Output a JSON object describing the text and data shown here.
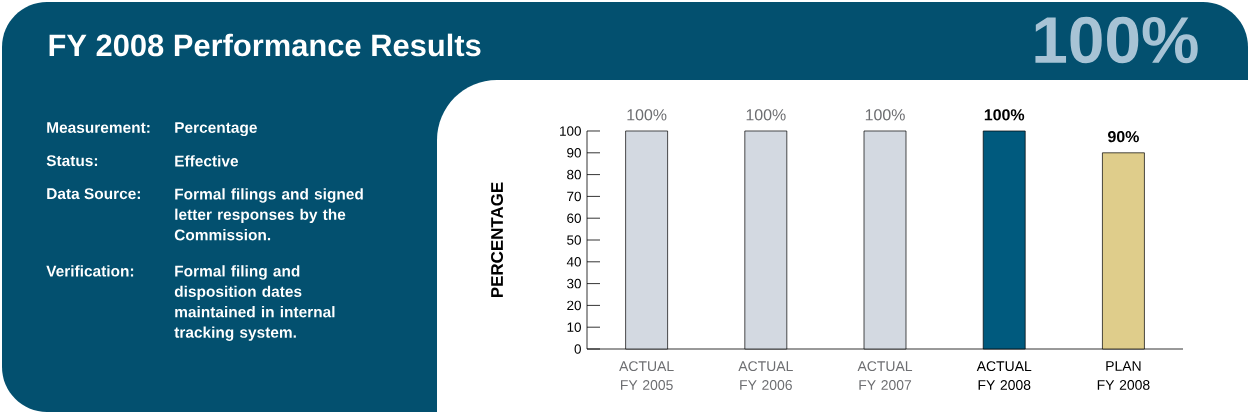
{
  "chart_data": {
    "type": "bar",
    "title": "FY 2008 Performance Results",
    "ylabel": "PERCENTAGE",
    "categories": [
      "ACTUAL FY 2005",
      "ACTUAL FY 2006",
      "ACTUAL FY 2007",
      "ACTUAL FY 2008",
      "PLAN FY 2008"
    ],
    "values": [
      100,
      100,
      100,
      100,
      90
    ],
    "colors": [
      "#d3d9e1",
      "#d3d9e1",
      "#d3d9e1",
      "#005a7e",
      "#dfcd8b"
    ],
    "value_labels": [
      "100%",
      "100%",
      "100%",
      "100%",
      "90%"
    ],
    "ylim": [
      0,
      100
    ],
    "yticks": [
      0,
      10,
      20,
      30,
      40,
      50,
      60,
      70,
      80,
      90,
      100
    ],
    "grid": false,
    "annotations": [
      "100%",
      "Measurement:",
      "Percentage",
      "Status:",
      "Effective",
      "Data Source:",
      "Formal filings and signed letter responses by the Commission.",
      "Verification:",
      "Formal filing and disposition dates maintained in internal tracking system."
    ]
  }
}
